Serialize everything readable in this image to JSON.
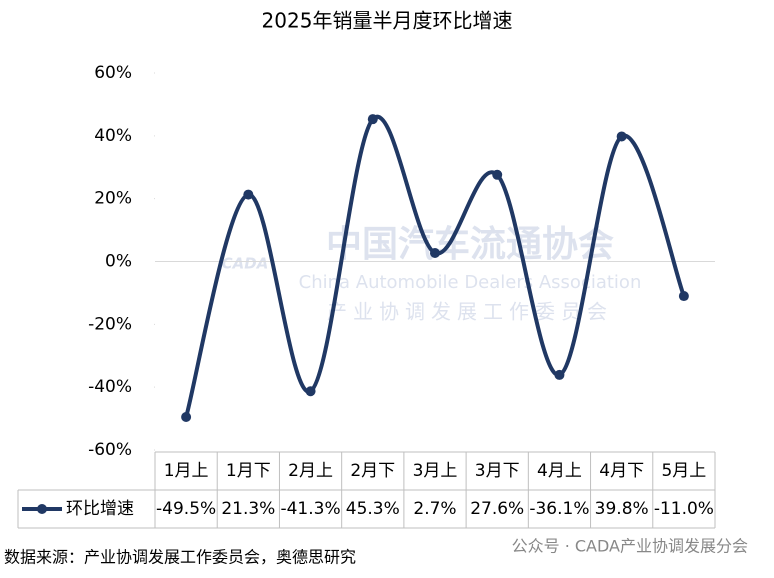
{
  "chart_data": {
    "type": "line",
    "title": "2025年销量半月度环比增速",
    "categories": [
      "1月上",
      "1月下",
      "2月上",
      "2月下",
      "3月上",
      "3月下",
      "4月上",
      "4月下",
      "5月上"
    ],
    "series": [
      {
        "name": "环比增速",
        "color": "#203864",
        "values": [
          -49.5,
          21.3,
          -41.3,
          45.3,
          2.7,
          27.6,
          -36.1,
          39.8,
          -11.0
        ],
        "value_labels": [
          "-49.5%",
          "21.3%",
          "-41.3%",
          "45.3%",
          "2.7%",
          "27.6%",
          "-36.1%",
          "39.8%",
          "-11.0%"
        ]
      }
    ],
    "ylim": [
      -60,
      60
    ],
    "yticks": [
      {
        "value": -60,
        "label": "-60%"
      },
      {
        "value": -40,
        "label": "-40%"
      },
      {
        "value": -20,
        "label": "-20%"
      },
      {
        "value": 0,
        "label": "0%"
      },
      {
        "value": 20,
        "label": "20%"
      },
      {
        "value": 40,
        "label": "40%"
      },
      {
        "value": 60,
        "label": "60%"
      }
    ],
    "smooth": true,
    "data_table": true,
    "source": "数据来源：产业协调发展工作委员会，奥德思研究",
    "watermark": [
      "中国汽车流通协会",
      "China Automobile Dealers Association",
      "产业协调发展工作委员会",
      "CADA"
    ],
    "footer_note": "公众号 · CADA产业协调发展分会"
  }
}
